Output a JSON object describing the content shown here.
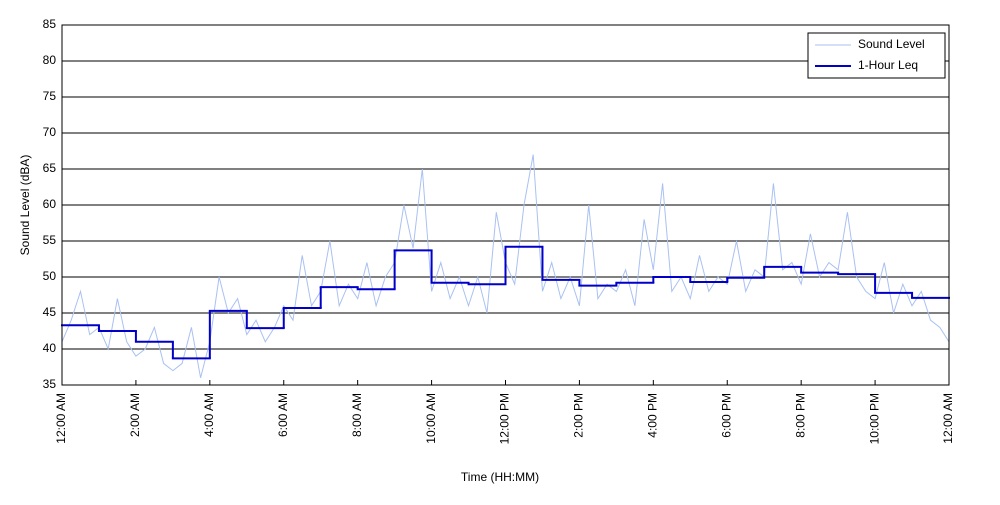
{
  "chart_data": {
    "type": "line",
    "xlabel": "Time (HH:MM)",
    "ylabel": "Sound Level (dBA)",
    "xlim": [
      0,
      24
    ],
    "ylim": [
      35,
      85
    ],
    "xticks": [
      {
        "value": 0,
        "label": "12:00 AM"
      },
      {
        "value": 2,
        "label": "2:00 AM"
      },
      {
        "value": 4,
        "label": "4:00 AM"
      },
      {
        "value": 6,
        "label": "6:00 AM"
      },
      {
        "value": 8,
        "label": "8:00 AM"
      },
      {
        "value": 10,
        "label": "10:00 AM"
      },
      {
        "value": 12,
        "label": "12:00 PM"
      },
      {
        "value": 14,
        "label": "2:00 PM"
      },
      {
        "value": 16,
        "label": "4:00 PM"
      },
      {
        "value": 18,
        "label": "6:00 PM"
      },
      {
        "value": 20,
        "label": "8:00 PM"
      },
      {
        "value": 22,
        "label": "10:00 PM"
      },
      {
        "value": 24,
        "label": "12:00 AM"
      }
    ],
    "yticks": [
      35,
      40,
      45,
      50,
      55,
      60,
      65,
      70,
      75,
      80,
      85
    ],
    "grid": true,
    "legend": "upper right",
    "series": [
      {
        "name": "Sound Level",
        "color": "#a9c1f2",
        "style": "line",
        "x": [
          0,
          0.25,
          0.5,
          0.75,
          1,
          1.25,
          1.5,
          1.75,
          2,
          2.25,
          2.5,
          2.75,
          3,
          3.25,
          3.5,
          3.75,
          4,
          4.25,
          4.5,
          4.75,
          5,
          5.25,
          5.5,
          5.75,
          6,
          6.25,
          6.5,
          6.75,
          7,
          7.25,
          7.5,
          7.75,
          8,
          8.25,
          8.5,
          8.75,
          9,
          9.25,
          9.5,
          9.75,
          10,
          10.25,
          10.5,
          10.75,
          11,
          11.25,
          11.5,
          11.75,
          12,
          12.25,
          12.5,
          12.75,
          13,
          13.25,
          13.5,
          13.75,
          14,
          14.25,
          14.5,
          14.75,
          15,
          15.25,
          15.5,
          15.75,
          16,
          16.25,
          16.5,
          16.75,
          17,
          17.25,
          17.5,
          17.75,
          18,
          18.25,
          18.5,
          18.75,
          19,
          19.25,
          19.5,
          19.75,
          20,
          20.25,
          20.5,
          20.75,
          21,
          21.25,
          21.5,
          21.75,
          22,
          22.25,
          22.5,
          22.75,
          23,
          23.25,
          23.5,
          23.75,
          24
        ],
        "values": [
          41,
          44,
          48,
          42,
          43,
          40,
          47,
          41,
          39,
          40,
          43,
          38,
          37,
          38,
          43,
          36,
          41,
          50,
          45,
          47,
          42,
          44,
          41,
          43,
          46,
          44,
          53,
          46,
          48,
          55,
          46,
          49,
          47,
          52,
          46,
          50,
          52,
          60,
          54,
          65,
          48,
          52,
          47,
          50,
          46,
          50,
          45,
          59,
          52,
          49,
          60,
          67,
          48,
          52,
          47,
          50,
          46,
          60,
          47,
          49,
          48,
          51,
          46,
          58,
          51,
          63,
          48,
          50,
          47,
          53,
          48,
          50,
          49,
          55,
          48,
          51,
          50,
          63,
          51,
          52,
          49,
          56,
          50,
          52,
          51,
          59,
          50,
          48,
          47,
          52,
          45,
          49,
          46,
          48,
          44,
          43,
          41
        ]
      },
      {
        "name": "1-Hour Leq",
        "color": "#0000c8",
        "style": "step",
        "x": [
          0,
          1,
          2,
          3,
          4,
          5,
          6,
          7,
          8,
          9,
          10,
          11,
          12,
          13,
          14,
          15,
          16,
          17,
          18,
          19,
          20,
          21,
          22,
          23
        ],
        "values": [
          43.3,
          42.5,
          41.0,
          38.7,
          45.3,
          42.9,
          45.7,
          48.6,
          48.3,
          53.7,
          49.2,
          49.0,
          54.2,
          49.6,
          48.8,
          49.2,
          50.0,
          49.3,
          49.9,
          51.4,
          50.6,
          50.4,
          47.8,
          47.1
        ]
      }
    ]
  }
}
